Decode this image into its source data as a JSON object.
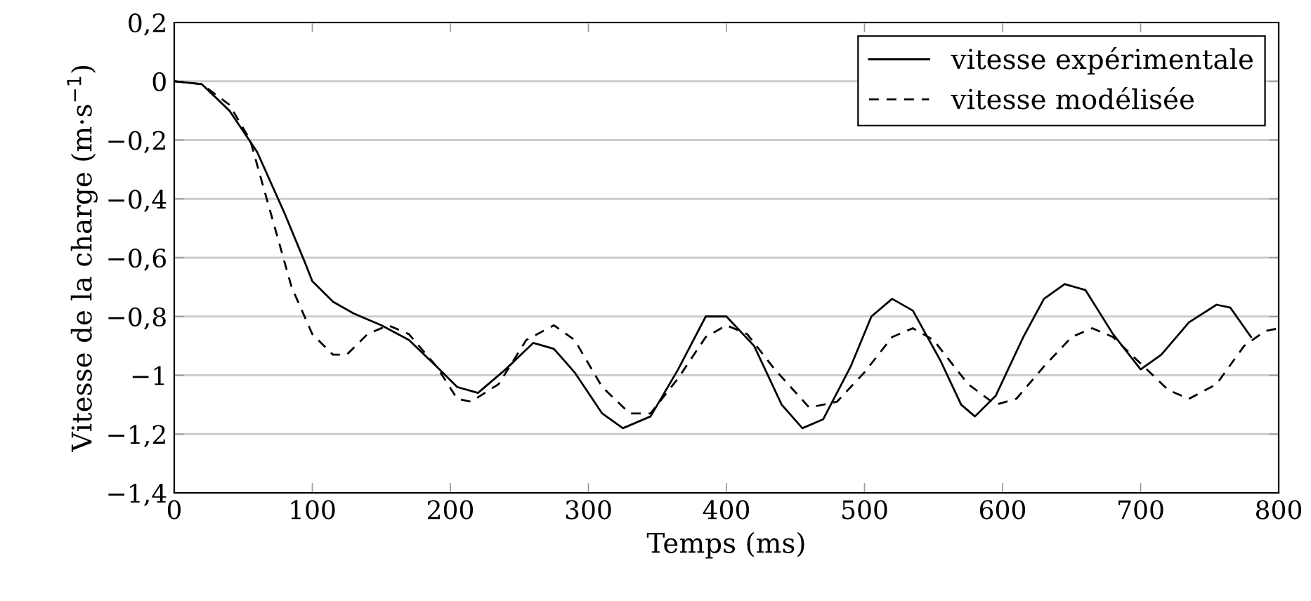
{
  "chart_data": {
    "type": "line",
    "xlabel": "Temps (ms)",
    "ylabel": "Vitesse de la charge (m·s$^{−1}$)",
    "xlim": [
      0,
      800
    ],
    "xticks": [
      0,
      100,
      200,
      300,
      400,
      500,
      600,
      700,
      800
    ],
    "ylim": [
      -1.4,
      0.2
    ],
    "yticks": [
      {
        "value": -1.4,
        "label": "−1,4"
      },
      {
        "value": -1.2,
        "label": "−1,2"
      },
      {
        "value": -1,
        "label": "−1"
      },
      {
        "value": -0.8,
        "label": "−0,8"
      },
      {
        "value": -0.6,
        "label": "−0,6"
      },
      {
        "value": -0.4,
        "label": "−0,4"
      },
      {
        "value": -0.2,
        "label": "−0,2"
      },
      {
        "value": 0,
        "label": "0"
      },
      {
        "value": 0.2,
        "label": "0,2"
      }
    ],
    "grid": "y",
    "legend": "top right",
    "series": [
      {
        "name": "vitesse expérimentale",
        "color": "#000000",
        "line_style": "solid",
        "x": [
          0,
          20,
          40,
          60,
          80,
          95,
          100,
          115,
          130,
          150,
          170,
          190,
          205,
          220,
          240,
          260,
          275,
          290,
          310,
          325,
          345,
          365,
          385,
          400,
          420,
          440,
          455,
          470,
          490,
          505,
          520,
          535,
          555,
          570,
          580,
          595,
          615,
          630,
          645,
          660,
          680,
          700,
          715,
          735,
          755,
          765,
          780
        ],
        "values": [
          0,
          -0.01,
          -0.1,
          -0.24,
          -0.45,
          -0.62,
          -0.68,
          -0.75,
          -0.79,
          -0.83,
          -0.88,
          -0.97,
          -1.04,
          -1.06,
          -0.98,
          -0.89,
          -0.91,
          -0.99,
          -1.13,
          -1.18,
          -1.14,
          -0.98,
          -0.8,
          -0.8,
          -0.9,
          -1.1,
          -1.18,
          -1.15,
          -0.97,
          -0.8,
          -0.74,
          -0.78,
          -0.95,
          -1.1,
          -1.14,
          -1.07,
          -0.87,
          -0.74,
          -0.69,
          -0.71,
          -0.86,
          -0.98,
          -0.93,
          -0.82,
          -0.76,
          -0.77,
          -0.87
        ]
      },
      {
        "name": "vitesse modélisée",
        "color": "#000000",
        "line_style": "dashed",
        "x": [
          0,
          20,
          40,
          55,
          70,
          85,
          100,
          115,
          125,
          140,
          155,
          170,
          190,
          205,
          215,
          235,
          255,
          275,
          290,
          310,
          330,
          345,
          365,
          385,
          400,
          415,
          435,
          460,
          480,
          500,
          520,
          535,
          550,
          575,
          595,
          610,
          630,
          650,
          665,
          680,
          700,
          720,
          735,
          755,
          775,
          790,
          800
        ],
        "values": [
          0,
          -0.01,
          -0.08,
          -0.2,
          -0.45,
          -0.7,
          -0.86,
          -0.93,
          -0.93,
          -0.86,
          -0.83,
          -0.86,
          -0.97,
          -1.08,
          -1.09,
          -1.03,
          -0.88,
          -0.83,
          -0.88,
          -1.04,
          -1.13,
          -1.13,
          -1.01,
          -0.87,
          -0.83,
          -0.86,
          -0.98,
          -1.11,
          -1.09,
          -0.99,
          -0.87,
          -0.84,
          -0.88,
          -1.03,
          -1.1,
          -1.08,
          -0.97,
          -0.87,
          -0.84,
          -0.87,
          -0.96,
          -1.05,
          -1.08,
          -1.03,
          -0.9,
          -0.85,
          -0.84
        ]
      }
    ]
  }
}
